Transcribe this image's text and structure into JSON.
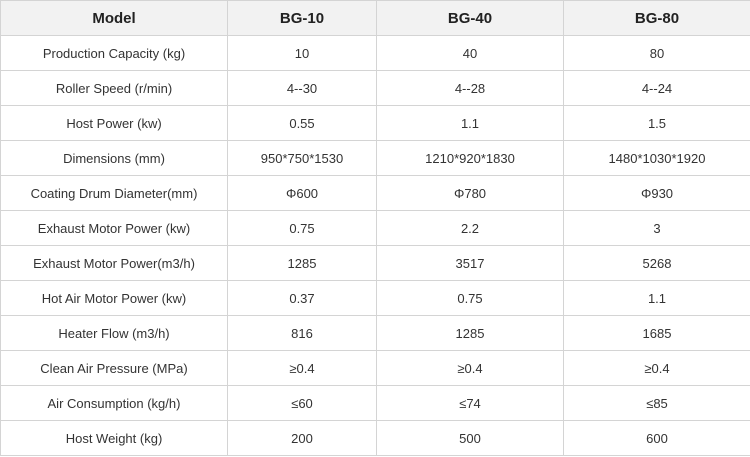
{
  "table": {
    "header": [
      "Model",
      "BG-10",
      "BG-40",
      "BG-80"
    ],
    "rows": [
      [
        "Production Capacity (kg)",
        "10",
        "40",
        "80"
      ],
      [
        "Roller Speed (r/min)",
        "4--30",
        "4--28",
        "4--24"
      ],
      [
        "Host Power (kw)",
        "0.55",
        "1.1",
        "1.5"
      ],
      [
        "Dimensions (mm)",
        "950*750*1530",
        "1210*920*1830",
        "1480*1030*1920"
      ],
      [
        "Coating Drum Diameter(mm)",
        "Φ600",
        "Φ780",
        "Φ930"
      ],
      [
        "Exhaust Motor Power (kw)",
        "0.75",
        "2.2",
        "3"
      ],
      [
        "Exhaust Motor Power(m3/h)",
        "1285",
        "3517",
        "5268"
      ],
      [
        "Hot Air Motor Power (kw)",
        "0.37",
        "0.75",
        "1.1"
      ],
      [
        "Heater Flow (m3/h)",
        "816",
        "1285",
        "1685"
      ],
      [
        "Clean Air Pressure (MPa)",
        "≥0.4",
        "≥0.4",
        "≥0.4"
      ],
      [
        "Air Consumption (kg/h)",
        "≤60",
        "≤74",
        "≤85"
      ],
      [
        "Host Weight (kg)",
        "200",
        "500",
        "600"
      ]
    ]
  }
}
